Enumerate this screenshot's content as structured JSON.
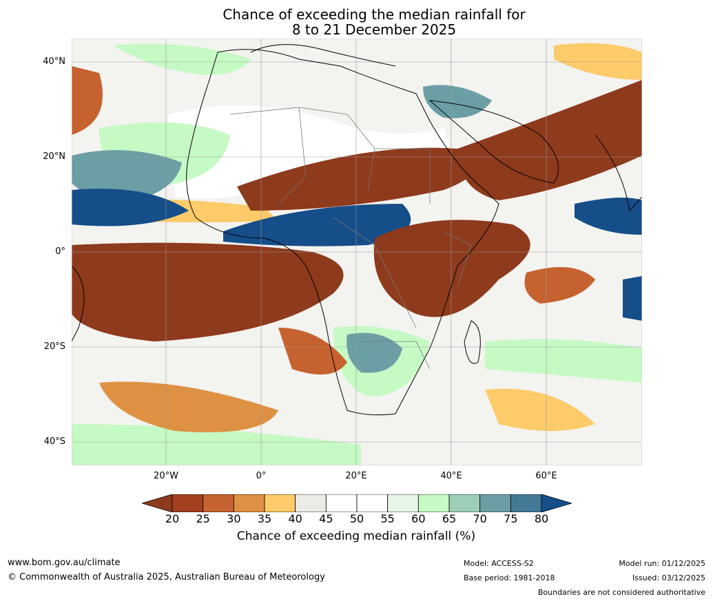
{
  "title_line1": "Chance of exceeding the median rainfall for",
  "title_line2": "8 to 21 December 2025",
  "map": {
    "lat_ticks": [
      "40°N",
      "20°N",
      "0°",
      "20°S",
      "40°S"
    ],
    "lat_values": [
      40,
      20,
      0,
      -20,
      -40
    ],
    "lon_ticks": [
      "20°W",
      "0°",
      "20°E",
      "40°E",
      "60°E"
    ],
    "lon_values": [
      -20,
      0,
      20,
      40,
      60
    ],
    "lon_range": [
      -40,
      80
    ],
    "lat_range": [
      -45,
      45
    ]
  },
  "colorbar": {
    "title": "Chance of exceeding median rainfall (%)",
    "tick_labels": [
      "20",
      "25",
      "30",
      "35",
      "40",
      "45",
      "50",
      "55",
      "60",
      "65",
      "70",
      "75",
      "80"
    ],
    "colors": [
      "#8e3a1c",
      "#a4401f",
      "#c6622f",
      "#de9143",
      "#fdcb6a",
      "#ecebe6",
      "#ffffff",
      "#ffffff",
      "#e6f5e6",
      "#c6fac4",
      "#9dcfb8",
      "#6b9fa5",
      "#437897",
      "#154e88"
    ],
    "extend": "both"
  },
  "footer": {
    "website": "www.bom.gov.au/climate",
    "copyright": "© Commonwealth of Australia 2025, Australian Bureau of Meteorology",
    "model": "Model: ACCESS-S2",
    "base_period": "Base period: 1981-2018",
    "model_run": "Model run: 01/12/2025",
    "issued": "Issued: 03/12/2025",
    "disclaimer": "Boundaries are not considered authoritative"
  }
}
